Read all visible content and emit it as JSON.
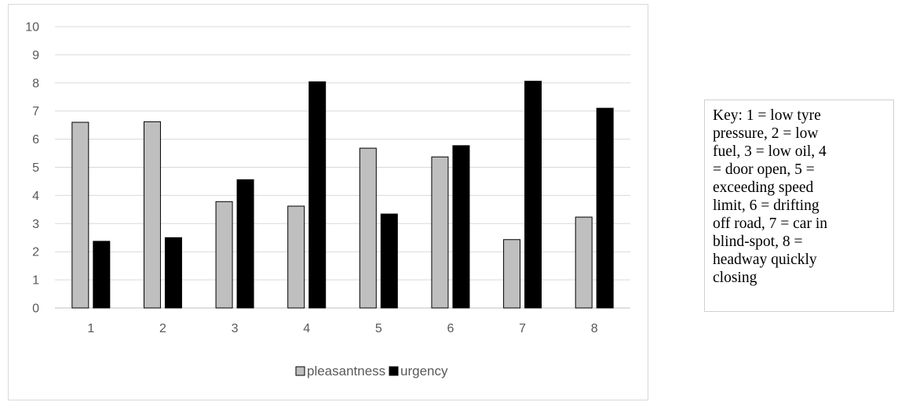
{
  "chart_data": {
    "type": "bar",
    "categories": [
      "1",
      "2",
      "3",
      "4",
      "5",
      "6",
      "7",
      "8"
    ],
    "series": [
      {
        "name": "pleasantness",
        "color": "#bfbfbf",
        "values": [
          6.6,
          6.62,
          3.78,
          3.62,
          5.68,
          5.37,
          2.43,
          3.23
        ]
      },
      {
        "name": "urgency",
        "color": "#000000",
        "values": [
          2.37,
          2.5,
          4.56,
          8.04,
          3.34,
          5.77,
          8.06,
          7.1
        ]
      }
    ],
    "yticks": [
      "0",
      "1",
      "2",
      "3",
      "4",
      "5",
      "6",
      "7",
      "8",
      "9",
      "10"
    ],
    "ylim": [
      0,
      10
    ],
    "grid": true,
    "legend_position": "bottom"
  },
  "key": {
    "text": "Key: 1 = low tyre pressure, 2 = low fuel, 3 = low oil, 4 = door open, 5 = exceeding speed limit, 6 = drifting off road, 7 = car in blind-spot, 8 = headway quickly closing"
  }
}
